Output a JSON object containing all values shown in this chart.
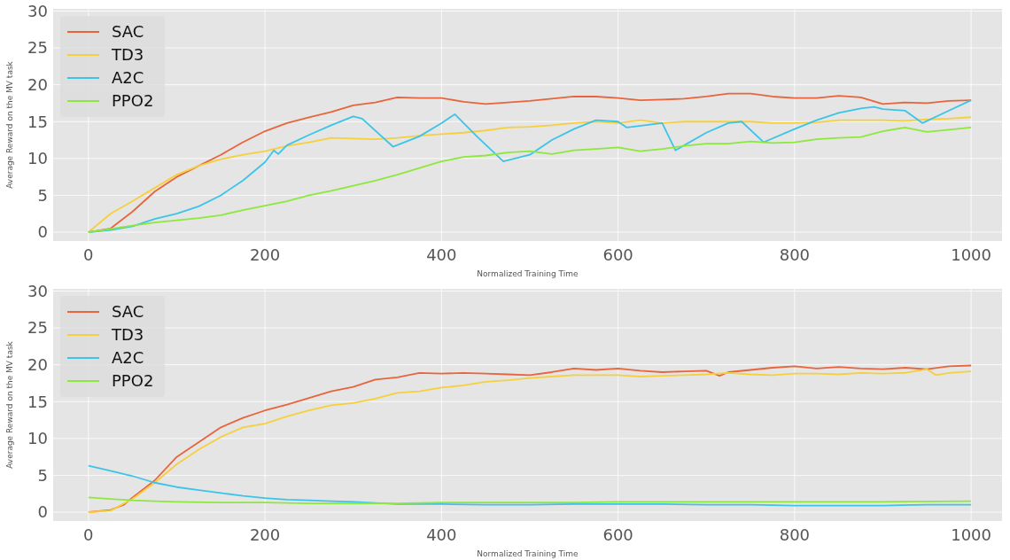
{
  "chart_data": [
    {
      "type": "line",
      "xlabel": "Normalized Training Time",
      "ylabel": "Average Reward on the MV task",
      "xlim": [
        -40,
        1035
      ],
      "ylim": [
        -1.2,
        30.3
      ],
      "xticks": [
        0,
        200,
        400,
        600,
        800,
        1000
      ],
      "yticks": [
        0,
        5,
        10,
        15,
        20,
        25,
        30
      ],
      "grid": true,
      "legend": "top left",
      "series": [
        {
          "name": "SAC",
          "color": "#e8643c",
          "x": [
            0,
            25,
            50,
            75,
            100,
            125,
            150,
            175,
            200,
            225,
            250,
            275,
            300,
            325,
            350,
            375,
            400,
            425,
            450,
            475,
            500,
            525,
            550,
            575,
            600,
            625,
            650,
            675,
            700,
            725,
            750,
            775,
            800,
            825,
            850,
            875,
            900,
            925,
            950,
            975,
            1000
          ],
          "values": [
            0,
            0.5,
            2.8,
            5.5,
            7.5,
            9,
            10.5,
            12.2,
            13.7,
            14.8,
            15.6,
            16.3,
            17.2,
            17.6,
            18.3,
            18.2,
            18.2,
            17.7,
            17.4,
            17.6,
            17.8,
            18.1,
            18.4,
            18.4,
            18.2,
            17.9,
            18,
            18.1,
            18.4,
            18.8,
            18.8,
            18.4,
            18.2,
            18.2,
            18.5,
            18.3,
            17.4,
            17.6,
            17.5,
            17.8,
            17.9
          ]
        },
        {
          "name": "TD3",
          "color": "#f5d03c",
          "x": [
            0,
            25,
            50,
            75,
            100,
            125,
            150,
            175,
            200,
            225,
            250,
            275,
            300,
            325,
            350,
            375,
            400,
            425,
            450,
            475,
            500,
            525,
            550,
            575,
            600,
            625,
            650,
            675,
            700,
            725,
            750,
            775,
            800,
            825,
            850,
            875,
            900,
            925,
            950,
            975,
            1000
          ],
          "values": [
            0,
            2.5,
            4.2,
            6,
            7.8,
            9,
            9.9,
            10.5,
            11,
            11.7,
            12.2,
            12.8,
            12.7,
            12.6,
            12.8,
            13.1,
            13.3,
            13.5,
            13.8,
            14.2,
            14.3,
            14.5,
            14.8,
            15,
            14.8,
            15.2,
            14.8,
            15,
            15,
            15,
            15,
            14.8,
            14.8,
            14.9,
            15.2,
            15.2,
            15.2,
            15.1,
            15.3,
            15.4,
            15.6
          ]
        },
        {
          "name": "A2C",
          "color": "#3cc4e8",
          "x": [
            0,
            25,
            50,
            75,
            100,
            125,
            150,
            175,
            200,
            210,
            215,
            225,
            250,
            275,
            300,
            310,
            345,
            375,
            400,
            415,
            440,
            470,
            500,
            525,
            550,
            575,
            600,
            610,
            650,
            665,
            700,
            725,
            740,
            765,
            800,
            825,
            850,
            875,
            890,
            900,
            925,
            945,
            975,
            1000
          ],
          "values": [
            0,
            0.3,
            0.8,
            1.8,
            2.5,
            3.5,
            5,
            7,
            9.5,
            11.1,
            10.6,
            11.8,
            13.2,
            14.5,
            15.7,
            15.4,
            11.6,
            13,
            14.8,
            16,
            13,
            9.6,
            10.5,
            12.5,
            14,
            15.2,
            15,
            14.2,
            14.8,
            11.1,
            13.5,
            14.8,
            15,
            12.2,
            14,
            15.2,
            16.2,
            16.8,
            17,
            16.7,
            16.5,
            14.8,
            16.5,
            17.9
          ]
        },
        {
          "name": "PPO2",
          "color": "#8de83c",
          "x": [
            0,
            50,
            75,
            100,
            125,
            150,
            175,
            200,
            225,
            250,
            275,
            300,
            325,
            350,
            375,
            400,
            425,
            450,
            475,
            500,
            525,
            550,
            575,
            600,
            625,
            650,
            675,
            700,
            725,
            750,
            775,
            800,
            825,
            850,
            875,
            900,
            925,
            950,
            975,
            1000
          ],
          "values": [
            0,
            0.9,
            1.3,
            1.6,
            1.9,
            2.3,
            3,
            3.6,
            4.2,
            5,
            5.6,
            6.3,
            7,
            7.8,
            8.7,
            9.6,
            10.2,
            10.4,
            10.8,
            11,
            10.6,
            11.1,
            11.3,
            11.5,
            11,
            11.3,
            11.7,
            12,
            12,
            12.3,
            12.1,
            12.2,
            12.6,
            12.8,
            12.9,
            13.7,
            14.2,
            13.6,
            13.9,
            14.2
          ]
        }
      ]
    },
    {
      "type": "line",
      "xlabel": "Normalized Training Time",
      "ylabel": "Average Reward on the MV task",
      "xlim": [
        -40,
        1035
      ],
      "ylim": [
        -1.2,
        30.3
      ],
      "xticks": [
        0,
        200,
        400,
        600,
        800,
        1000
      ],
      "yticks": [
        0,
        5,
        10,
        15,
        20,
        25,
        30
      ],
      "grid": true,
      "legend": "top left",
      "series": [
        {
          "name": "SAC",
          "color": "#e8643c",
          "x": [
            0,
            25,
            40,
            50,
            75,
            100,
            125,
            150,
            175,
            200,
            225,
            250,
            275,
            300,
            325,
            350,
            375,
            400,
            425,
            450,
            475,
            500,
            525,
            550,
            575,
            600,
            625,
            650,
            675,
            700,
            715,
            725,
            750,
            775,
            800,
            825,
            850,
            875,
            900,
            925,
            950,
            975,
            1000
          ],
          "values": [
            0,
            0.3,
            1,
            2,
            4.3,
            7.5,
            9.5,
            11.5,
            12.8,
            13.8,
            14.6,
            15.5,
            16.4,
            17,
            18,
            18.3,
            18.9,
            18.8,
            18.9,
            18.8,
            18.7,
            18.6,
            19,
            19.5,
            19.3,
            19.5,
            19.2,
            19,
            19.1,
            19.2,
            18.5,
            19,
            19.3,
            19.6,
            19.8,
            19.5,
            19.7,
            19.5,
            19.4,
            19.6,
            19.4,
            19.8,
            19.9
          ]
        },
        {
          "name": "TD3",
          "color": "#f5d03c",
          "x": [
            0,
            25,
            50,
            75,
            100,
            125,
            150,
            175,
            200,
            225,
            250,
            275,
            300,
            325,
            350,
            375,
            400,
            425,
            450,
            475,
            500,
            525,
            550,
            575,
            600,
            625,
            650,
            675,
            700,
            725,
            750,
            775,
            800,
            825,
            850,
            875,
            900,
            925,
            950,
            960,
            975,
            1000
          ],
          "values": [
            0,
            0.2,
            1.8,
            4,
            6.5,
            8.5,
            10.2,
            11.5,
            12,
            13,
            13.8,
            14.5,
            14.8,
            15.4,
            16.2,
            16.4,
            16.9,
            17.2,
            17.7,
            17.9,
            18.2,
            18.4,
            18.6,
            18.6,
            18.6,
            18.4,
            18.5,
            18.6,
            18.7,
            18.9,
            18.7,
            18.6,
            18.8,
            18.8,
            18.7,
            18.9,
            18.8,
            18.9,
            19.4,
            18.6,
            18.9,
            19.1
          ]
        },
        {
          "name": "A2C",
          "color": "#3cc4e8",
          "x": [
            0,
            25,
            50,
            75,
            100,
            125,
            150,
            175,
            200,
            225,
            250,
            275,
            300,
            350,
            400,
            450,
            500,
            550,
            600,
            650,
            700,
            750,
            800,
            850,
            900,
            950,
            1000
          ],
          "values": [
            6.3,
            5.6,
            4.9,
            4,
            3.4,
            3,
            2.6,
            2.2,
            1.9,
            1.7,
            1.6,
            1.5,
            1.4,
            1.1,
            1.1,
            1,
            1,
            1.1,
            1.1,
            1.1,
            1,
            1,
            0.9,
            0.9,
            0.9,
            1,
            1
          ]
        },
        {
          "name": "PPO2",
          "color": "#8de83c",
          "x": [
            0,
            25,
            50,
            75,
            100,
            150,
            200,
            250,
            300,
            350,
            400,
            450,
            500,
            550,
            600,
            700,
            800,
            900,
            1000
          ],
          "values": [
            2,
            1.8,
            1.6,
            1.5,
            1.4,
            1.3,
            1.3,
            1.2,
            1.2,
            1.2,
            1.3,
            1.3,
            1.3,
            1.3,
            1.4,
            1.4,
            1.4,
            1.4,
            1.5
          ]
        }
      ]
    }
  ]
}
